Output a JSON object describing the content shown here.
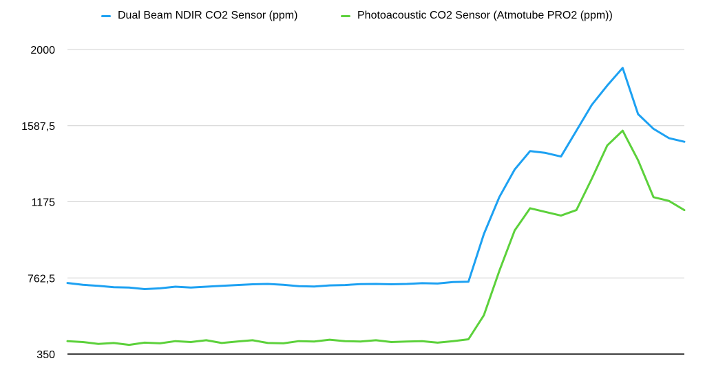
{
  "chart_data": {
    "type": "line",
    "title": "",
    "xlabel": "",
    "ylabel": "",
    "ylim": [
      350,
      2000
    ],
    "yticks": [
      "350",
      "762,5",
      "1175",
      "1587,5",
      "2000"
    ],
    "grid": true,
    "legend_position": "top",
    "x": [
      0,
      5,
      10,
      15,
      20,
      25,
      30,
      35,
      40,
      45,
      50,
      55,
      60,
      65,
      70,
      75,
      80,
      85,
      90,
      95,
      100,
      105,
      110,
      115,
      120,
      125,
      130,
      135,
      140,
      145,
      150,
      155,
      160,
      165,
      170,
      175,
      180,
      185,
      190,
      195,
      200
    ],
    "series": [
      {
        "name": "Dual Beam NDIR CO2 Sensor (ppm)",
        "color": "#1da1f2",
        "values": [
          735,
          725,
          720,
          712,
          710,
          702,
          706,
          715,
          710,
          715,
          720,
          724,
          728,
          730,
          725,
          718,
          716,
          722,
          724,
          729,
          730,
          728,
          730,
          734,
          732,
          740,
          742,
          1000,
          1200,
          1350,
          1450,
          1440,
          1420,
          1560,
          1700,
          1805,
          1900,
          1650,
          1570,
          1520,
          1500
        ]
      },
      {
        "name": "Photoacoustic CO2 Sensor (Atmotube PRO2 (ppm))",
        "color": "#5cd13b",
        "values": [
          420,
          415,
          405,
          410,
          400,
          412,
          408,
          420,
          415,
          425,
          410,
          418,
          425,
          410,
          408,
          420,
          418,
          428,
          420,
          418,
          425,
          415,
          418,
          420,
          412,
          420,
          430,
          560,
          800,
          1020,
          1140,
          1120,
          1100,
          1130,
          1300,
          1480,
          1560,
          1400,
          1200,
          1180,
          1130
        ]
      }
    ]
  }
}
